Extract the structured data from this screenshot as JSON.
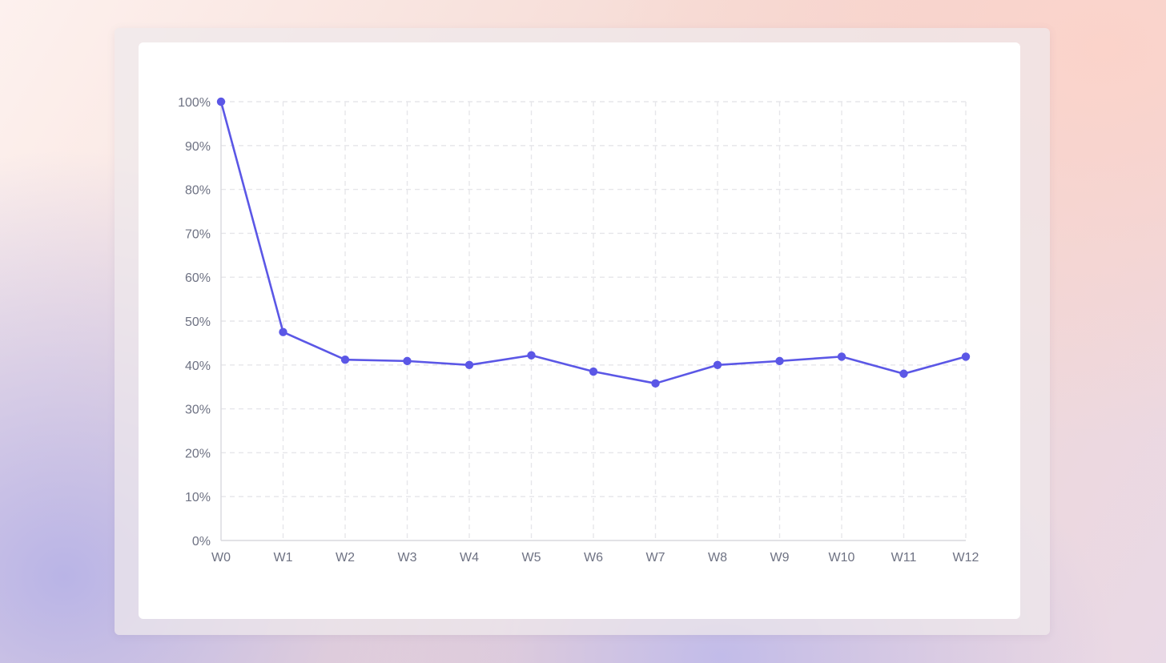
{
  "chart_data": {
    "type": "line",
    "title": "",
    "xlabel": "",
    "ylabel": "",
    "categories": [
      "W0",
      "W1",
      "W2",
      "W3",
      "W4",
      "W5",
      "W6",
      "W7",
      "W8",
      "W9",
      "W10",
      "W11",
      "W12"
    ],
    "series": [
      {
        "values": [
          100,
          47.5,
          41.2,
          40.9,
          40.0,
          42.2,
          38.5,
          35.8,
          40.0,
          40.9,
          41.9,
          38.0,
          41.9
        ],
        "color": "#5b57e6"
      }
    ],
    "ylim": [
      0,
      100
    ],
    "yticks": [
      0,
      10,
      20,
      30,
      40,
      50,
      60,
      70,
      80,
      90,
      100
    ],
    "ytick_labels": [
      "0%",
      "10%",
      "20%",
      "30%",
      "40%",
      "50%",
      "60%",
      "70%",
      "80%",
      "90%",
      "100%"
    ],
    "grid": true,
    "legend": "none"
  }
}
